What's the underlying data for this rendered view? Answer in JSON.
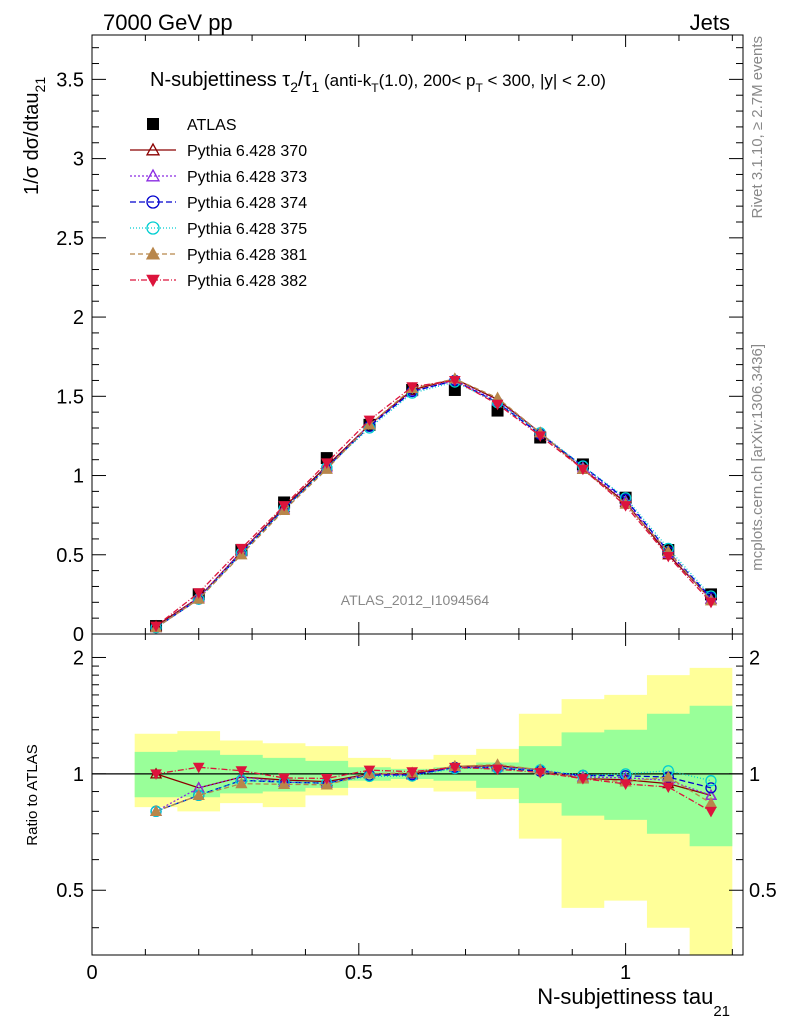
{
  "header": {
    "left": "7000 GeV pp",
    "right": "Jets",
    "side_top": "Rivet 3.1.10, ≥ 2.7M events",
    "side_bottom": "mcplots.cern.ch [arXiv:1306.3436]"
  },
  "chart_data": {
    "type": "line",
    "title": {
      "main": "N-subjettiness τ",
      "sub1": "2",
      "slash": "/τ",
      "sub2": "1",
      "cut_a": " (anti-k",
      "cut_a_sub": "T",
      "cut_b": "(1.0), 200< p",
      "cut_b_sub": "T",
      "cut_c": " < 300, |y| < 2.0)"
    },
    "ylabel": {
      "main": "1/σ dσ/dtau",
      "sub": "21"
    },
    "xlabel": {
      "main": "N-subjettiness tau",
      "sub": "21"
    },
    "ratio_ylabel": "Ratio to ATLAS",
    "analysis_id": "ATLAS_2012_I1094564",
    "xlim": [
      0,
      1.22
    ],
    "ylim": [
      0,
      3.78
    ],
    "ratio_ylim": [
      0.34,
      2.3
    ],
    "x_ticks": [
      "0",
      "0.5",
      "1"
    ],
    "y_ticks": [
      "0",
      "0.5",
      "1",
      "1.5",
      "2",
      "2.5",
      "3",
      "3.5"
    ],
    "ratio_ticks": [
      "0.5",
      "1",
      "2"
    ],
    "x": [
      0.12,
      0.2,
      0.28,
      0.36,
      0.44,
      0.52,
      0.6,
      0.68,
      0.76,
      0.84,
      0.92,
      1.0,
      1.08,
      1.16
    ],
    "bin_edges": [
      0.08,
      0.16,
      0.24,
      0.32,
      0.4,
      0.48,
      0.56,
      0.64,
      0.72,
      0.8,
      0.88,
      0.96,
      1.04,
      1.12,
      1.2
    ],
    "data": {
      "name": "ATLAS",
      "values": [
        0.05,
        0.25,
        0.53,
        0.83,
        1.11,
        1.32,
        1.54,
        1.54,
        1.41,
        1.24,
        1.07,
        0.86,
        0.53,
        0.25
      ]
    },
    "series": [
      {
        "name": "Pythia 6.428 370",
        "color": "#8b0000",
        "marker": "triangle-open",
        "dash": "",
        "values": [
          0.05,
          0.23,
          0.52,
          0.8,
          1.06,
          1.32,
          1.54,
          1.61,
          1.48,
          1.27,
          1.04,
          0.83,
          0.5,
          0.22
        ]
      },
      {
        "name": "Pythia 6.428 373",
        "color": "#8a2be2",
        "marker": "triangle-open",
        "dash": "2,2",
        "values": [
          0.04,
          0.23,
          0.52,
          0.79,
          1.05,
          1.32,
          1.53,
          1.6,
          1.47,
          1.27,
          1.05,
          0.84,
          0.51,
          0.22
        ]
      },
      {
        "name": "Pythia 6.428 374",
        "color": "#0000cd",
        "marker": "circle-open",
        "dash": "6,3",
        "values": [
          0.04,
          0.22,
          0.51,
          0.79,
          1.05,
          1.31,
          1.53,
          1.6,
          1.46,
          1.26,
          1.06,
          0.85,
          0.52,
          0.23
        ]
      },
      {
        "name": "Pythia 6.428 375",
        "color": "#00ced1",
        "marker": "circle-open",
        "dash": "1,2",
        "values": [
          0.04,
          0.22,
          0.51,
          0.79,
          1.05,
          1.3,
          1.52,
          1.59,
          1.46,
          1.27,
          1.06,
          0.86,
          0.54,
          0.24
        ]
      },
      {
        "name": "Pythia 6.428 381",
        "color": "#b8864b",
        "marker": "triangle-filled",
        "dash": "5,3",
        "values": [
          0.04,
          0.22,
          0.5,
          0.78,
          1.04,
          1.32,
          1.55,
          1.61,
          1.49,
          1.27,
          1.04,
          0.82,
          0.52,
          0.21
        ]
      },
      {
        "name": "Pythia 6.428 382",
        "color": "#dc143c",
        "marker": "triangle-down-filled",
        "dash": "6,2,1,2",
        "values": [
          0.05,
          0.26,
          0.54,
          0.81,
          1.08,
          1.35,
          1.56,
          1.6,
          1.45,
          1.25,
          1.04,
          0.81,
          0.49,
          0.2
        ]
      }
    ],
    "ratio_band_inner": {
      "lo": [
        0.87,
        0.87,
        0.89,
        0.9,
        0.92,
        0.96,
        0.97,
        0.96,
        0.92,
        0.84,
        0.78,
        0.76,
        0.7,
        0.65
      ],
      "hi": [
        1.14,
        1.15,
        1.12,
        1.1,
        1.08,
        1.04,
        1.03,
        1.04,
        1.07,
        1.18,
        1.28,
        1.3,
        1.43,
        1.5
      ]
    },
    "ratio_band_outer": {
      "lo": [
        0.82,
        0.8,
        0.84,
        0.82,
        0.88,
        0.92,
        0.92,
        0.9,
        0.86,
        0.68,
        0.45,
        0.47,
        0.4,
        0.3
      ],
      "hi": [
        1.27,
        1.29,
        1.22,
        1.2,
        1.18,
        1.1,
        1.09,
        1.12,
        1.16,
        1.43,
        1.56,
        1.6,
        1.8,
        1.88
      ]
    },
    "legend_position": "top-left"
  }
}
